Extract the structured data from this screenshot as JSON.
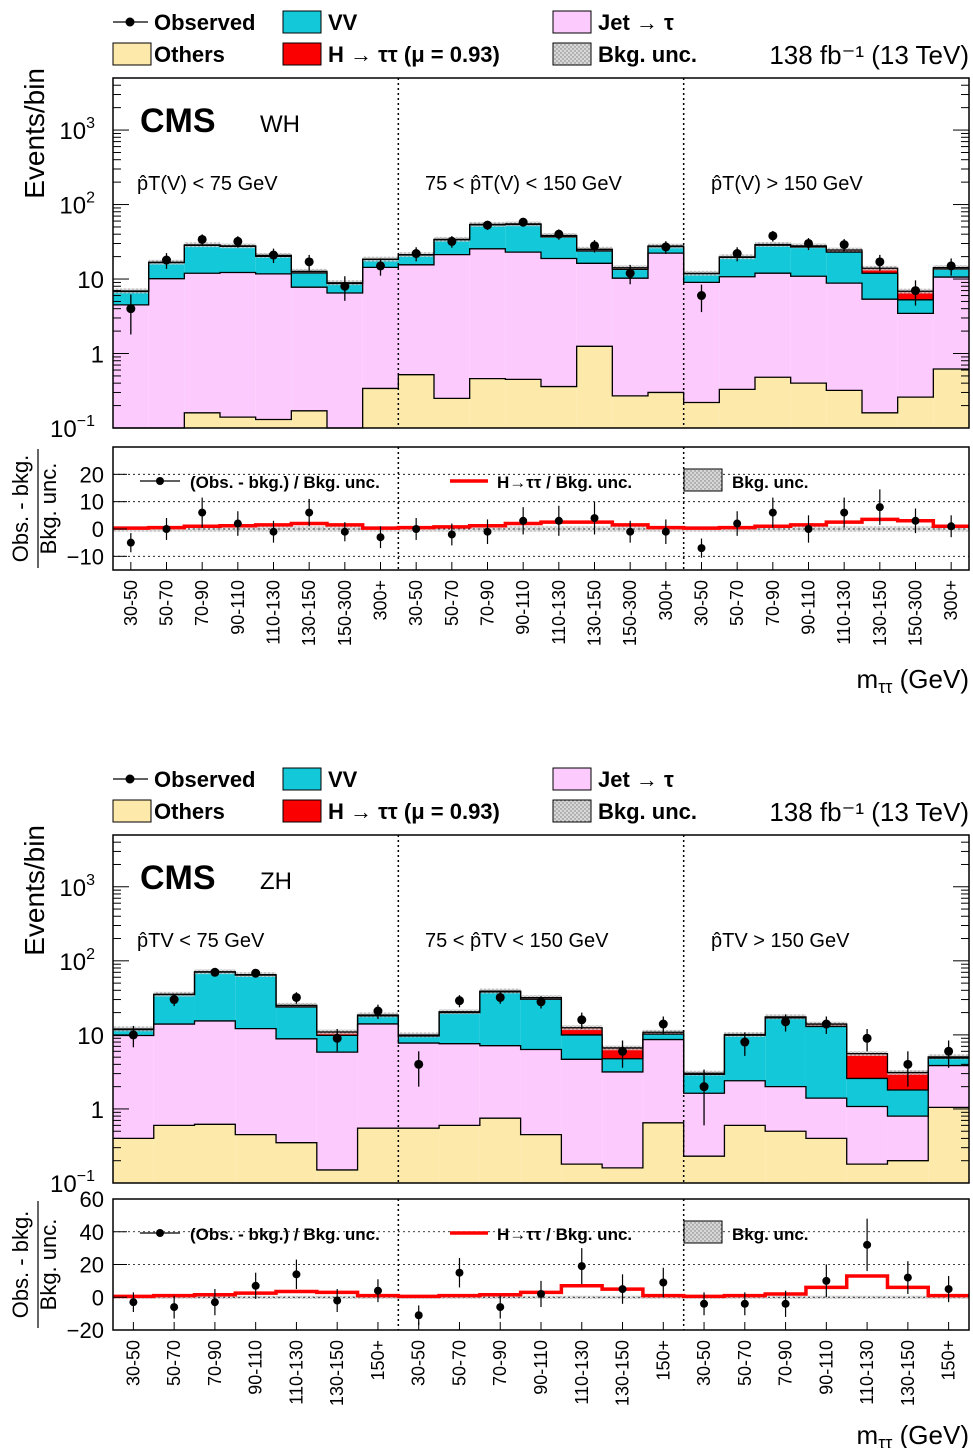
{
  "colors": {
    "vv": "#12c8d9",
    "jet": "#fdcafe",
    "others": "#fde9aa",
    "higgs": "#fa0000",
    "observed": "#000000",
    "bkg_unc": "#b0b0b0",
    "signal_ratio_line": "#ff0000"
  },
  "legend": {
    "observed": "Observed",
    "vv": "VV",
    "jet": "Jet → τ",
    "others": "Others",
    "higgs": "H → ττ (μ = 0.93)",
    "bkg_unc": "Bkg. unc.",
    "lumi": "138 fb⁻¹ (13 TeV)"
  },
  "ratio_legend": {
    "obs": "(Obs. - bkg.) / Bkg. unc.",
    "sig": "H→ττ / Bkg. unc.",
    "unc": "Bkg. unc."
  },
  "cms_label": "CMS",
  "chart_data": [
    {
      "type": "bar",
      "stacked": true,
      "channel": "WH",
      "ylabel": "Events/bin",
      "yscale": "log",
      "ylim": [
        0.1,
        5000
      ],
      "ratio_ylabel_top": "Obs. - bkg.",
      "ratio_ylabel_bottom": "Bkg. unc.",
      "ratio_ylim": [
        -15,
        30
      ],
      "ratio_yticks": [
        -10,
        0,
        10,
        20
      ],
      "xlabel": "mττ (GeV)",
      "regions": [
        "p̂T(V) < 75 GeV",
        "75 < p̂T(V) < 150 GeV",
        "p̂T(V) > 150 GeV"
      ],
      "categories": [
        "30-50",
        "50-70",
        "70-90",
        "90-110",
        "110-130",
        "130-150",
        "150-300",
        "300+",
        "30-50",
        "50-70",
        "70-90",
        "90-110",
        "110-130",
        "130-150",
        "150-300",
        "300+",
        "30-50",
        "50-70",
        "70-90",
        "90-110",
        "110-130",
        "130-150",
        "150-300",
        "300+"
      ],
      "series": [
        {
          "name": "Others",
          "values": [
            0.1,
            0.1,
            0.16,
            0.14,
            0.13,
            0.17,
            0.1,
            0.34,
            0.52,
            0.25,
            0.46,
            0.45,
            0.36,
            1.25,
            0.27,
            0.3,
            0.22,
            0.33,
            0.48,
            0.4,
            0.32,
            0.16,
            0.26,
            0.62
          ]
        },
        {
          "name": "Jet → τ",
          "values": [
            4.4,
            10.0,
            11.8,
            12.1,
            11.6,
            7.6,
            6.4,
            14.0,
            15.0,
            21.0,
            25.0,
            22.5,
            18.5,
            15.0,
            10.0,
            22.0,
            8.8,
            10.4,
            11.5,
            10.5,
            8.5,
            5.2,
            3.2,
            10.0
          ]
        },
        {
          "name": "VV",
          "values": [
            2.3,
            6.5,
            16.4,
            15.2,
            8.4,
            4.3,
            2.2,
            4.0,
            5.5,
            12.5,
            28.0,
            31.0,
            18.0,
            7.6,
            3.2,
            5.0,
            2.8,
            8.8,
            16.5,
            16.0,
            14.2,
            6.6,
            1.8,
            3.0
          ]
        },
        {
          "name": "H → ττ (μ = 0.93)",
          "values": [
            0.1,
            0.2,
            0.4,
            0.4,
            0.6,
            0.6,
            0.2,
            0.1,
            0.2,
            0.3,
            0.6,
            1.0,
            1.5,
            1.2,
            0.7,
            0.4,
            0.1,
            0.3,
            0.6,
            1.0,
            1.5,
            2.0,
            1.6,
            0.6
          ]
        }
      ],
      "observed": [
        4,
        18,
        34,
        32,
        21,
        17,
        8,
        15,
        22,
        32,
        53,
        58,
        40,
        28,
        12,
        27,
        6,
        22,
        38,
        30,
        29,
        17,
        7,
        15
      ],
      "observed_err": [
        2.2,
        4.3,
        5.8,
        5.6,
        4.6,
        4.1,
        2.9,
        3.9,
        4.7,
        5.7,
        7.3,
        7.6,
        6.3,
        5.3,
        3.5,
        5.2,
        2.4,
        4.7,
        6.2,
        5.5,
        5.4,
        4.1,
        2.6,
        3.9
      ],
      "ratio_obs": [
        -5,
        0,
        6,
        2,
        -1,
        6,
        -1,
        -3,
        0,
        -2,
        -1,
        3,
        3,
        4,
        -1,
        -1,
        -7,
        2,
        6,
        0,
        6,
        8,
        3,
        1
      ],
      "ratio_obs_err": [
        3.5,
        4.0,
        5.5,
        4.5,
        4.0,
        5.0,
        3.5,
        4.0,
        4.0,
        4.0,
        4.5,
        5.0,
        5.5,
        6.0,
        4.0,
        4.5,
        3.5,
        4.5,
        5.5,
        5.0,
        5.5,
        6.5,
        4.5,
        4.0
      ],
      "ratio_sig": [
        0.3,
        0.5,
        1.0,
        1.2,
        1.5,
        2.0,
        1.5,
        0.3,
        0.5,
        0.8,
        1.2,
        2.0,
        2.5,
        2.5,
        1.5,
        0.5,
        0.3,
        0.5,
        1.0,
        1.5,
        2.5,
        3.5,
        3.0,
        1.0
      ]
    },
    {
      "type": "bar",
      "stacked": true,
      "channel": "ZH",
      "ylabel": "Events/bin",
      "yscale": "log",
      "ylim": [
        0.1,
        5000
      ],
      "ratio_ylabel_top": "Obs. - bkg.",
      "ratio_ylabel_bottom": "Bkg. unc.",
      "ratio_ylim": [
        -20,
        60
      ],
      "ratio_yticks": [
        -20,
        0,
        20,
        40,
        60
      ],
      "xlabel": "mττ (GeV)",
      "regions": [
        "p̂TV < 75 GeV",
        "75 < p̂TV < 150 GeV",
        "p̂TV > 150 GeV"
      ],
      "categories": [
        "30-50",
        "50-70",
        "70-90",
        "90-110",
        "110-130",
        "130-150",
        "150+",
        "30-50",
        "50-70",
        "70-90",
        "90-110",
        "110-130",
        "130-150",
        "150+",
        "30-50",
        "50-70",
        "70-90",
        "90-110",
        "110-130",
        "130-150",
        "150+"
      ],
      "series": [
        {
          "name": "Others",
          "values": [
            0.4,
            0.6,
            0.62,
            0.45,
            0.35,
            0.15,
            0.55,
            0.55,
            0.6,
            0.75,
            0.45,
            0.18,
            0.16,
            0.65,
            0.23,
            0.6,
            0.5,
            0.4,
            0.18,
            0.2,
            1.05
          ]
        },
        {
          "name": "Jet → τ",
          "values": [
            9.4,
            13.4,
            14.8,
            11.7,
            8.5,
            5.7,
            13.5,
            7.2,
            7.0,
            6.4,
            5.9,
            4.5,
            3.0,
            8.0,
            1.4,
            1.8,
            1.5,
            1.0,
            0.9,
            0.6,
            2.8
          ]
        },
        {
          "name": "VV",
          "values": [
            2.0,
            21.0,
            55.0,
            52.0,
            15.0,
            4.0,
            4.0,
            1.9,
            12.4,
            31.0,
            24.0,
            5.3,
            1.6,
            1.6,
            1.3,
            7.5,
            15.0,
            11.6,
            1.5,
            1.0,
            1.0
          ]
        },
        {
          "name": "H → ττ (μ = 0.93)",
          "values": [
            0.2,
            0.4,
            0.6,
            0.8,
            1.2,
            1.1,
            0.5,
            0.3,
            0.5,
            0.8,
            1.5,
            2.5,
            1.9,
            0.6,
            0.1,
            0.2,
            0.5,
            1.0,
            3.0,
            1.3,
            0.2
          ]
        }
      ],
      "observed": [
        10,
        30,
        70,
        68,
        32,
        9,
        21,
        4,
        29,
        32,
        28,
        16,
        6,
        14,
        2,
        8,
        15,
        14,
        9,
        4,
        6
      ],
      "observed_err": [
        3.2,
        5.5,
        8.4,
        8.2,
        5.7,
        3.0,
        4.6,
        2.0,
        5.4,
        5.7,
        5.3,
        4.0,
        2.4,
        3.7,
        1.4,
        2.8,
        3.9,
        3.7,
        3.0,
        2.0,
        2.4
      ],
      "ratio_obs": [
        -3,
        -6,
        -3,
        7,
        14,
        -2,
        4,
        -11,
        15,
        -6,
        2,
        19,
        5,
        9,
        -4,
        -4,
        -4,
        10,
        32,
        12,
        5
      ],
      "ratio_obs_err": [
        6,
        7,
        8,
        8,
        9,
        7,
        7,
        6,
        9,
        7,
        8,
        11,
        9,
        9,
        7,
        7,
        8,
        10,
        16,
        10,
        8
      ],
      "ratio_sig": [
        0.5,
        1.0,
        1.5,
        2.5,
        3.5,
        3.0,
        1.0,
        0.5,
        1.0,
        1.5,
        3.0,
        7.0,
        5.0,
        1.0,
        0.5,
        1.0,
        2.0,
        6.0,
        13.0,
        6.0,
        1.0
      ]
    }
  ]
}
